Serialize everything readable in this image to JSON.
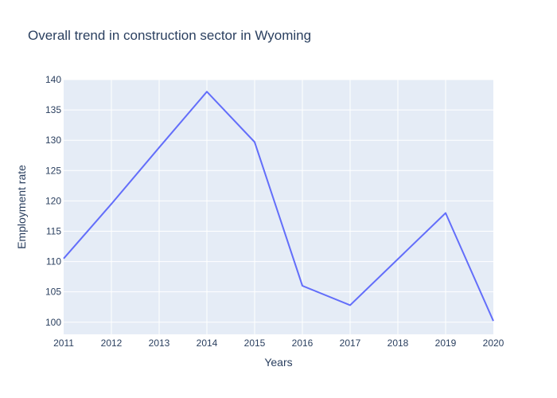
{
  "chart_data": {
    "type": "line",
    "title": "Overall trend in construction sector in Wyoming",
    "xlabel": "Years",
    "ylabel": "Employment rate",
    "xlim": [
      2011,
      2020
    ],
    "ylim": [
      98,
      140
    ],
    "x_ticks": [
      "2011",
      "2012",
      "2013",
      "2014",
      "2015",
      "2016",
      "2017",
      "2018",
      "2019",
      "2020"
    ],
    "y_ticks": [
      "100",
      "105",
      "110",
      "115",
      "120",
      "125",
      "130",
      "135",
      "140"
    ],
    "grid": true,
    "legend": "none",
    "colors": {
      "plot_bg": "#e5ecf6",
      "grid": "#ffffff",
      "line": "#636efa",
      "text": "#2a3f5f"
    },
    "series": [
      {
        "x": [
          2011,
          2012,
          2013,
          2014,
          2015,
          2016,
          2017,
          2018,
          2019,
          2020
        ],
        "values": [
          110.5,
          119.5,
          128.8,
          138.0,
          129.7,
          106.0,
          102.8,
          110.4,
          118.0,
          100.2
        ]
      }
    ]
  }
}
